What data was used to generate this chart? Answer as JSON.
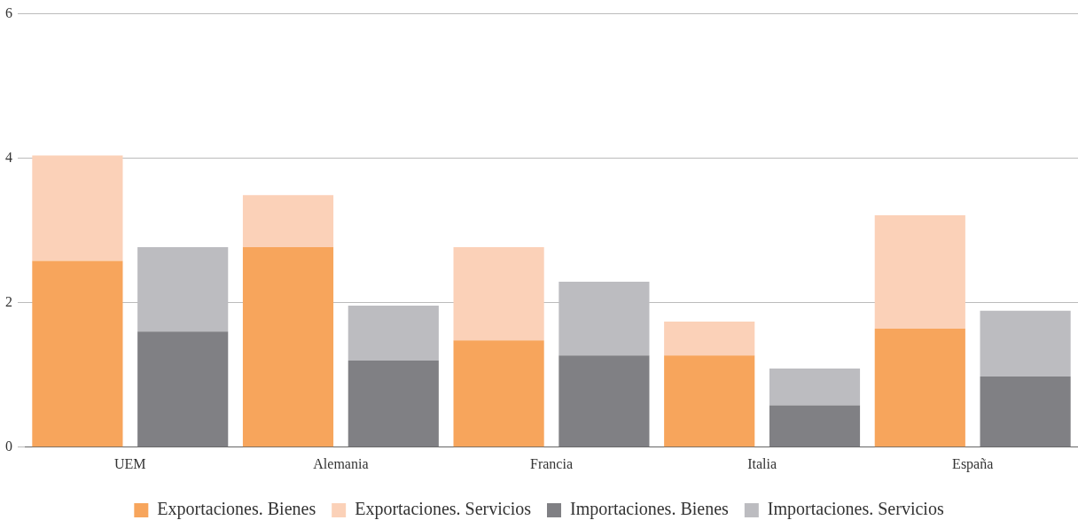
{
  "chart_data": {
    "type": "bar",
    "stacked": true,
    "categories": [
      "UEM",
      null,
      "Alemania",
      null,
      "Francia",
      null,
      "Italia",
      null,
      "España",
      null
    ],
    "series": [
      {
        "name": "Exportaciones. Bienes",
        "color": "#f7a55c",
        "values": [
          2.58,
          null,
          2.77,
          null,
          1.48,
          null,
          1.27,
          null,
          1.64,
          null
        ]
      },
      {
        "name": "Exportaciones. Servicios",
        "color": "#fbd1b8",
        "values": [
          1.46,
          null,
          0.72,
          null,
          1.29,
          null,
          0.47,
          null,
          1.57,
          null
        ]
      },
      {
        "name": "Importaciones. Bienes",
        "color": "#808084",
        "values": [
          null,
          1.6,
          null,
          1.2,
          null,
          1.27,
          null,
          0.58,
          null,
          0.98
        ]
      },
      {
        "name": "Importaciones. Servicios",
        "color": "#bcbcc0",
        "values": [
          null,
          1.17,
          null,
          0.76,
          null,
          1.02,
          null,
          0.51,
          null,
          0.91
        ]
      }
    ],
    "ylim": [
      0,
      6
    ],
    "yticks": [
      0,
      2,
      4,
      6
    ],
    "grid": "y",
    "legend": "bottom"
  }
}
